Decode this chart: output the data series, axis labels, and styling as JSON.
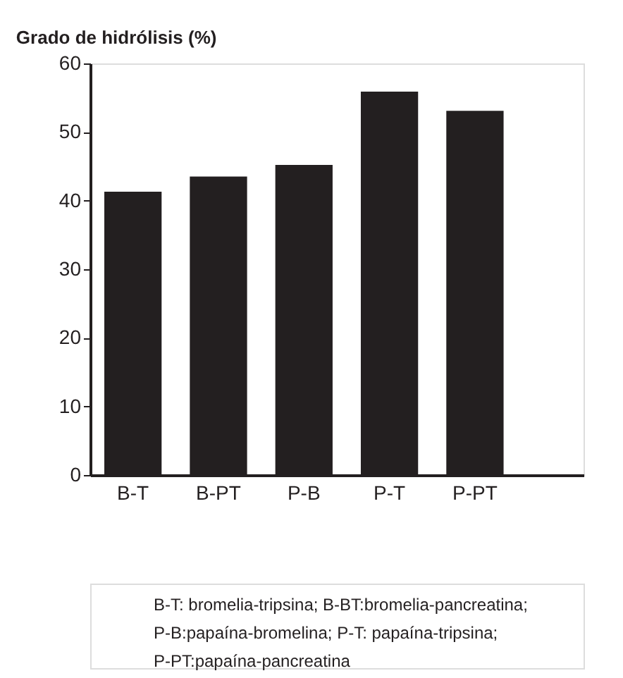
{
  "chart_data": {
    "type": "bar",
    "title": "Grado de hidrólisis (%)",
    "categories": [
      "B-T",
      "B-PT",
      "P-B",
      "P-T",
      "P-PT"
    ],
    "values": [
      41.3,
      43.5,
      45.2,
      55.9,
      53.1
    ],
    "color": "#231f20",
    "ylim": [
      0,
      60
    ],
    "yticks": [
      0,
      10,
      20,
      30,
      40,
      50,
      60
    ],
    "grid": false,
    "annotations": [
      "B-T: bromelia-tripsina; B-BT:bromelia-pancreatina;",
      "P-B:papaína-bromelina; P-T: papaína-tripsina;",
      "P-PT:papaína-pancreatina"
    ]
  }
}
